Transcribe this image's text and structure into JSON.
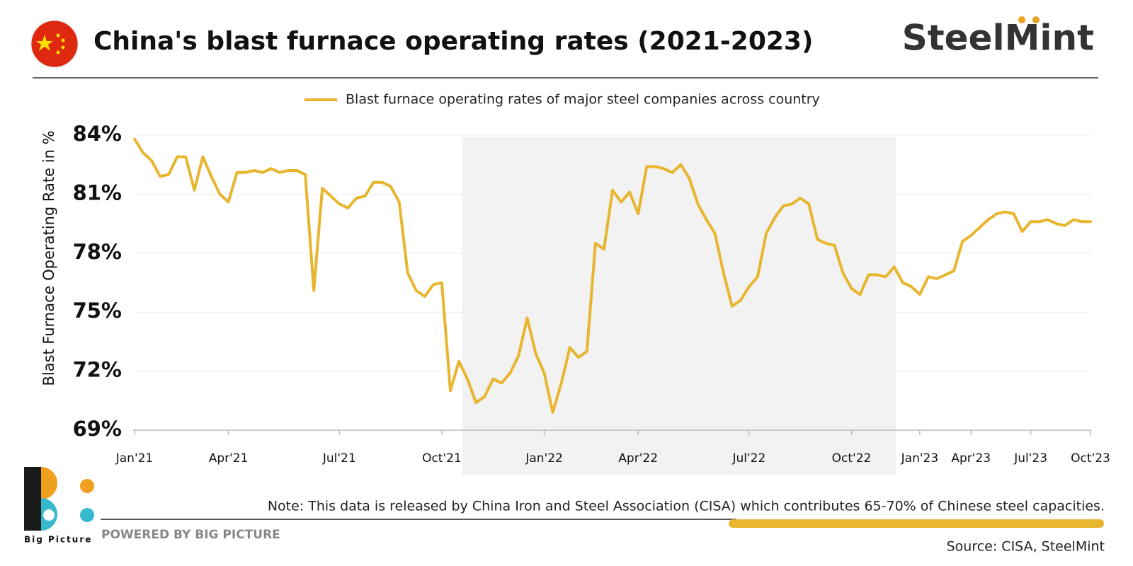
{
  "chart_data": {
    "type": "line",
    "title": "China's blast furnace operating rates (2021-2023)",
    "brand": "SteelMint",
    "y_label": "Blast Furnace Operating Rate in %",
    "note": "Note: This data is released by China Iron and Steel Association (CISA) which contributes 65-70% of Chinese steel capacities.",
    "powered_by": "POWERED BY BIG PICTURE",
    "logo_caption": "Big Picture",
    "source": "Source: CISA, SteelMint",
    "categories": [
      "Jan'21",
      null,
      null,
      null,
      null,
      null,
      null,
      null,
      null,
      null,
      null,
      "Apr'21",
      null,
      null,
      null,
      null,
      null,
      null,
      null,
      null,
      null,
      null,
      null,
      null,
      "Jul'21",
      null,
      null,
      null,
      null,
      null,
      null,
      null,
      null,
      null,
      null,
      null,
      "Oct'21",
      null,
      null,
      null,
      null,
      null,
      null,
      null,
      null,
      null,
      null,
      null,
      "Jan'22",
      null,
      null,
      null,
      null,
      null,
      null,
      null,
      null,
      null,
      null,
      "Apr'22",
      null,
      null,
      null,
      null,
      null,
      null,
      null,
      null,
      null,
      null,
      null,
      null,
      "Jul'22",
      null,
      null,
      null,
      null,
      null,
      null,
      null,
      null,
      null,
      null,
      null,
      "Oct'22",
      null,
      null,
      null,
      null,
      null,
      null,
      null,
      "Jan'23",
      null,
      null,
      null,
      null,
      null,
      "Apr'23",
      null,
      null,
      null,
      null,
      null,
      null,
      "Jul'23",
      null,
      null,
      null,
      null,
      null,
      null,
      "Oct'23"
    ],
    "series": [
      {
        "name": "Blast furnace operating rates of major steel companies across country",
        "color": "#e8b52e",
        "values": [
          83.8,
          83.1,
          82.7,
          81.9,
          82.0,
          82.9,
          82.9,
          81.2,
          82.9,
          81.9,
          81.0,
          80.6,
          82.1,
          82.1,
          82.2,
          82.1,
          82.3,
          82.1,
          82.2,
          82.2,
          82.0,
          76.1,
          81.3,
          80.9,
          80.5,
          80.3,
          80.8,
          80.9,
          81.6,
          81.6,
          81.4,
          80.6,
          77.0,
          76.1,
          75.8,
          76.4,
          76.5,
          71.0,
          72.5,
          71.6,
          70.4,
          70.7,
          71.6,
          71.4,
          71.9,
          72.8,
          74.7,
          72.9,
          71.9,
          69.9,
          71.4,
          73.2,
          72.7,
          73.0,
          78.5,
          78.2,
          81.2,
          80.6,
          81.1,
          80.0,
          82.4,
          82.4,
          82.3,
          82.1,
          82.5,
          81.8,
          80.5,
          79.7,
          79.0,
          77.0,
          75.3,
          75.6,
          76.3,
          76.8,
          79.0,
          79.8,
          80.4,
          80.5,
          80.8,
          80.5,
          78.7,
          78.5,
          78.4,
          77.0,
          76.2,
          75.9,
          76.9,
          76.9,
          76.8,
          77.3,
          76.5,
          76.3,
          75.9,
          76.8,
          76.7,
          76.9,
          77.1,
          78.6,
          78.9,
          79.3,
          79.7,
          80.0,
          80.1,
          80.0,
          79.1,
          79.6,
          79.6,
          79.7,
          79.5,
          79.4,
          79.7,
          79.6,
          79.6
        ]
      }
    ],
    "ylim": [
      69,
      84
    ],
    "yticks": [
      {
        "value": 69,
        "label": "69%"
      },
      {
        "value": 72,
        "label": "72%"
      },
      {
        "value": 75,
        "label": "75%"
      },
      {
        "value": 78,
        "label": "78%"
      },
      {
        "value": 81,
        "label": "81%"
      },
      {
        "value": 84,
        "label": "84%"
      }
    ],
    "grid": true
  }
}
